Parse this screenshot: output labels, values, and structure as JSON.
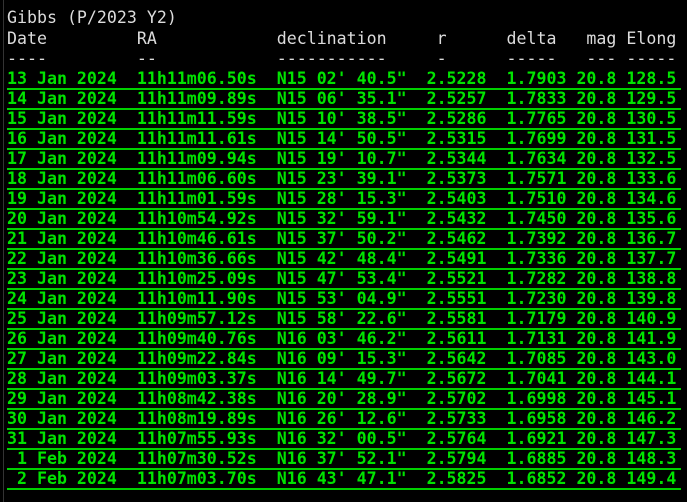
{
  "title": "Gibbs (P/2023 Y2)",
  "columns": [
    "Date",
    "RA",
    "declination",
    "r",
    "delta",
    "mag",
    "Elong"
  ],
  "underlines": [
    "----",
    "--",
    "-----------",
    "-",
    "-----",
    "---",
    "-----"
  ],
  "text_color": "#dcdcdc",
  "data_color": "#00e400",
  "rows": [
    [
      "13 Jan 2024",
      "11h11m06.50s",
      "N15 02' 40.5\"",
      "2.5228",
      "1.7903",
      "20.8",
      "128.5"
    ],
    [
      "14 Jan 2024",
      "11h11m09.89s",
      "N15 06' 35.1\"",
      "2.5257",
      "1.7833",
      "20.8",
      "129.5"
    ],
    [
      "15 Jan 2024",
      "11h11m11.59s",
      "N15 10' 38.5\"",
      "2.5286",
      "1.7765",
      "20.8",
      "130.5"
    ],
    [
      "16 Jan 2024",
      "11h11m11.61s",
      "N15 14' 50.5\"",
      "2.5315",
      "1.7699",
      "20.8",
      "131.5"
    ],
    [
      "17 Jan 2024",
      "11h11m09.94s",
      "N15 19' 10.7\"",
      "2.5344",
      "1.7634",
      "20.8",
      "132.5"
    ],
    [
      "18 Jan 2024",
      "11h11m06.60s",
      "N15 23' 39.1\"",
      "2.5373",
      "1.7571",
      "20.8",
      "133.6"
    ],
    [
      "19 Jan 2024",
      "11h11m01.59s",
      "N15 28' 15.3\"",
      "2.5403",
      "1.7510",
      "20.8",
      "134.6"
    ],
    [
      "20 Jan 2024",
      "11h10m54.92s",
      "N15 32' 59.1\"",
      "2.5432",
      "1.7450",
      "20.8",
      "135.6"
    ],
    [
      "21 Jan 2024",
      "11h10m46.61s",
      "N15 37' 50.2\"",
      "2.5462",
      "1.7392",
      "20.8",
      "136.7"
    ],
    [
      "22 Jan 2024",
      "11h10m36.66s",
      "N15 42' 48.4\"",
      "2.5491",
      "1.7336",
      "20.8",
      "137.7"
    ],
    [
      "23 Jan 2024",
      "11h10m25.09s",
      "N15 47' 53.4\"",
      "2.5521",
      "1.7282",
      "20.8",
      "138.8"
    ],
    [
      "24 Jan 2024",
      "11h10m11.90s",
      "N15 53' 04.9\"",
      "2.5551",
      "1.7230",
      "20.8",
      "139.8"
    ],
    [
      "25 Jan 2024",
      "11h09m57.12s",
      "N15 58' 22.6\"",
      "2.5581",
      "1.7179",
      "20.8",
      "140.9"
    ],
    [
      "26 Jan 2024",
      "11h09m40.76s",
      "N16 03' 46.2\"",
      "2.5611",
      "1.7131",
      "20.8",
      "141.9"
    ],
    [
      "27 Jan 2024",
      "11h09m22.84s",
      "N16 09' 15.3\"",
      "2.5642",
      "1.7085",
      "20.8",
      "143.0"
    ],
    [
      "28 Jan 2024",
      "11h09m03.37s",
      "N16 14' 49.7\"",
      "2.5672",
      "1.7041",
      "20.8",
      "144.1"
    ],
    [
      "29 Jan 2024",
      "11h08m42.38s",
      "N16 20' 28.9\"",
      "2.5702",
      "1.6998",
      "20.8",
      "145.1"
    ],
    [
      "30 Jan 2024",
      "11h08m19.89s",
      "N16 26' 12.6\"",
      "2.5733",
      "1.6958",
      "20.8",
      "146.2"
    ],
    [
      "31 Jan 2024",
      "11h07m55.93s",
      "N16 32' 00.5\"",
      "2.5764",
      "1.6921",
      "20.8",
      "147.3"
    ],
    [
      "1 Feb 2024",
      "11h07m30.52s",
      "N16 37' 52.1\"",
      "2.5794",
      "1.6885",
      "20.8",
      "148.3"
    ],
    [
      "2 Feb 2024",
      "11h07m03.70s",
      "N16 43' 47.1\"",
      "2.5825",
      "1.6852",
      "20.8",
      "149.4"
    ]
  ]
}
